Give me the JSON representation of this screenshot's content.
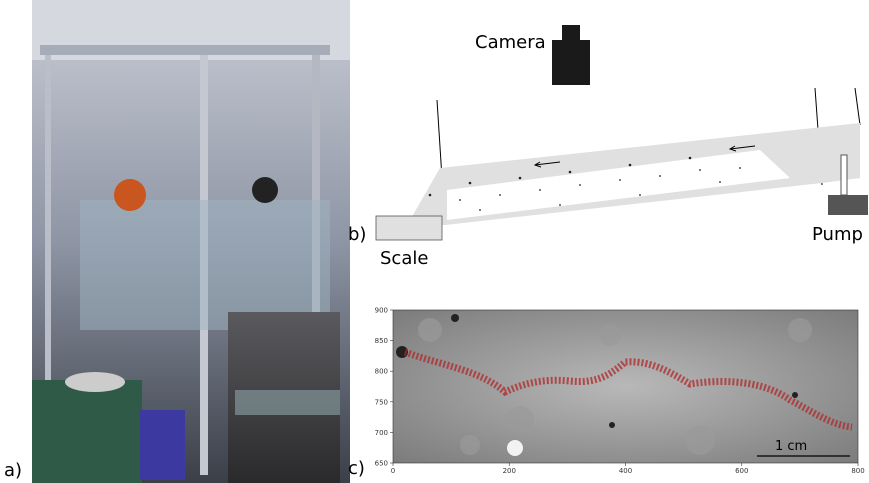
{
  "panels": {
    "a": {
      "label": "a)"
    },
    "b": {
      "label": "b)",
      "camera": "Camera",
      "scale": "Scale",
      "pump": "Pump"
    },
    "c": {
      "label": "c)",
      "scale_bar": "1 cm",
      "xlim": [
        0,
        800
      ],
      "ylim": [
        650,
        900
      ],
      "xticks": [
        0,
        200,
        400,
        600,
        800
      ],
      "yticks": [
        650,
        700,
        750,
        800,
        850,
        900
      ]
    }
  }
}
